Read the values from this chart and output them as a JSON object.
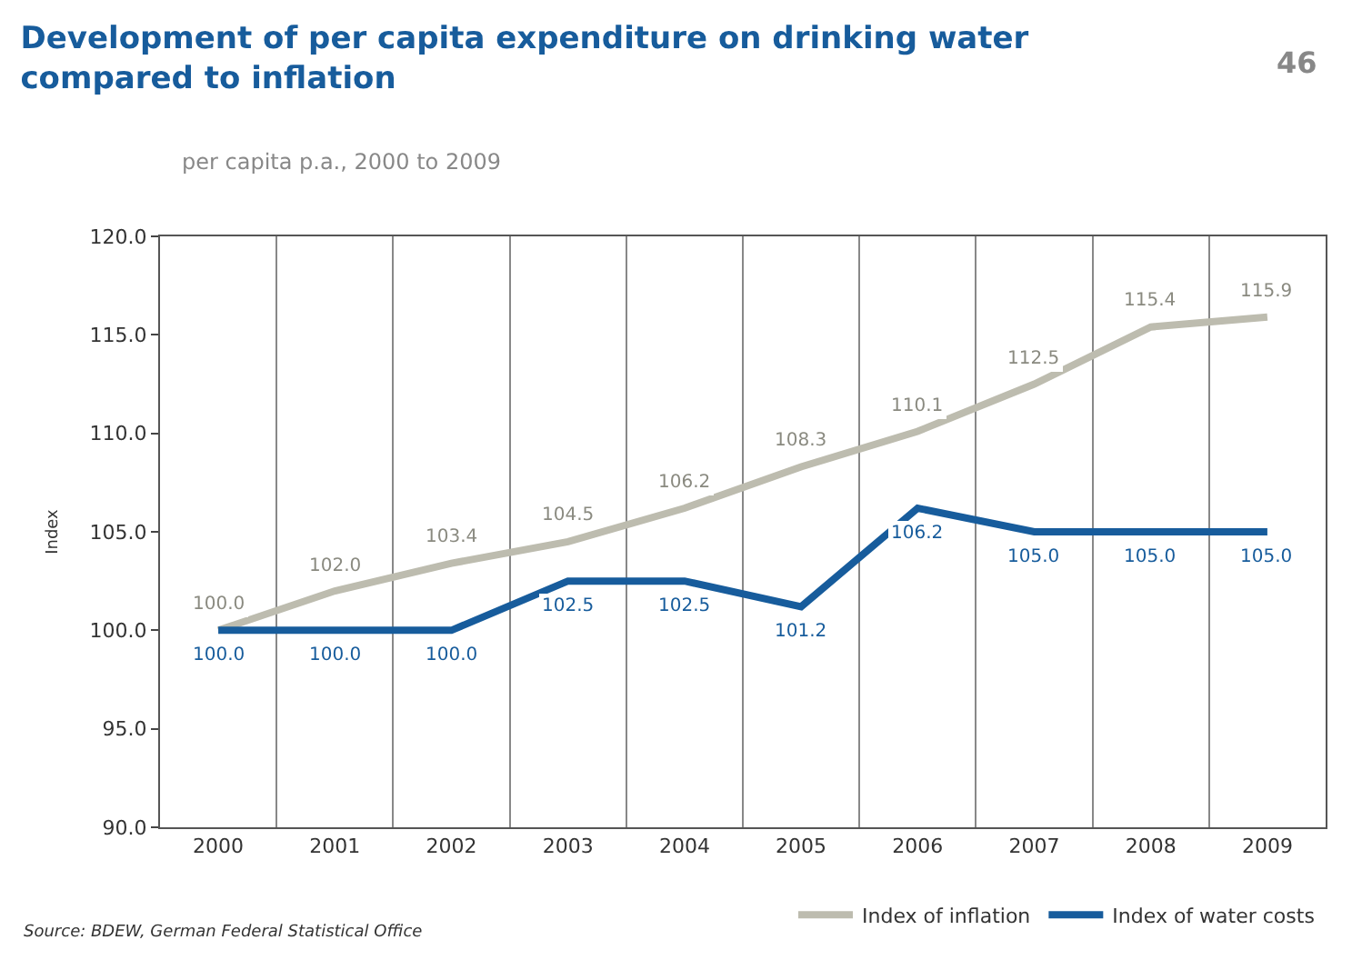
{
  "chart_data": {
    "type": "line",
    "title": "Development of per capita expenditure on drinking water\ncompared to inflation",
    "subtitle": "per capita p.a., 2000 to 2009",
    "ylabel": "Index",
    "categories": [
      "2000",
      "2001",
      "2002",
      "2003",
      "2004",
      "2005",
      "2006",
      "2007",
      "2008",
      "2009"
    ],
    "series": [
      {
        "name": "Index of inflation",
        "color": "#bdbcaf",
        "values": [
          100.0,
          102.0,
          103.4,
          104.5,
          106.2,
          108.3,
          110.1,
          112.5,
          115.4,
          115.9
        ],
        "value_labels": [
          "100.0",
          "102.0",
          "103.4",
          "104.5",
          "106.2",
          "108.3",
          "110.1",
          "112.5",
          "115.4",
          "115.9"
        ]
      },
      {
        "name": "Index of water costs",
        "color": "#175c9c",
        "values": [
          100.0,
          100.0,
          100.0,
          102.5,
          102.5,
          101.2,
          106.2,
          105.0,
          105.0,
          105.0
        ],
        "value_labels": [
          "100.0",
          "100.0",
          "100.0",
          "102.5",
          "102.5",
          "101.2",
          "106.2",
          "105.0",
          "105.0",
          "105.0"
        ]
      }
    ],
    "ylim": [
      90,
      120
    ],
    "yticks": [
      {
        "value": 90,
        "label": "90.0"
      },
      {
        "value": 95,
        "label": "95.0"
      },
      {
        "value": 100,
        "label": "100.0"
      },
      {
        "value": 105,
        "label": "105.0"
      },
      {
        "value": 110,
        "label": "110.0"
      },
      {
        "value": 115,
        "label": "115.0"
      },
      {
        "value": 120,
        "label": "120.0"
      }
    ],
    "grid": "x",
    "legend": "bottom right",
    "marker": "none",
    "line_style": "solid",
    "annotations": [
      "46",
      "Source: BDEW, German Federal Statistical Office"
    ]
  }
}
